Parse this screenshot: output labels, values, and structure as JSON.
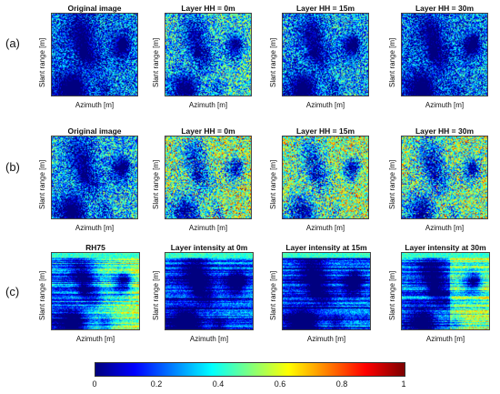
{
  "rows": [
    {
      "label": "(a)",
      "panels": [
        {
          "title": "Original image",
          "xlabel": "Azimuth [m]",
          "ylabel": "Slant range [m]",
          "level": 0.22
        },
        {
          "title": "Layer HH = 0m",
          "xlabel": "Azimuth [m]",
          "ylabel": "Slant range [m]",
          "level": 0.38
        },
        {
          "title": "Layer HH = 15m",
          "xlabel": "Azimuth [m]",
          "ylabel": "Slant range [m]",
          "level": 0.3
        },
        {
          "title": "Layer HH = 30m",
          "xlabel": "Azimuth [m]",
          "ylabel": "Slant range [m]",
          "level": 0.24
        }
      ]
    },
    {
      "label": "(b)",
      "panels": [
        {
          "title": "Original image",
          "xlabel": "Azimuth [m]",
          "ylabel": "Slant range [m]",
          "level": 0.33
        },
        {
          "title": "Layer HH = 0m",
          "xlabel": "Azimuth [m]",
          "ylabel": "Slant range [m]",
          "level": 0.5
        },
        {
          "title": "Layer HH = 15m",
          "xlabel": "Azimuth [m]",
          "ylabel": "Slant range [m]",
          "level": 0.52
        },
        {
          "title": "Layer HH = 30m",
          "xlabel": "Azimuth [m]",
          "ylabel": "Slant range [m]",
          "level": 0.48
        }
      ]
    },
    {
      "label": "(c)",
      "panels": [
        {
          "title": "RH75",
          "xlabel": "Azimuth [m]",
          "ylabel": "Slant range [m]",
          "level": 0.35
        },
        {
          "title": "Layer intensity at 0m",
          "xlabel": "Azimuth [m]",
          "ylabel": "Slant range [m]",
          "level": 0.2
        },
        {
          "title": "Layer intensity at 15m",
          "xlabel": "Azimuth [m]",
          "ylabel": "Slant range [m]",
          "level": 0.18
        },
        {
          "title": "Layer intensity at 30m",
          "xlabel": "Azimuth [m]",
          "ylabel": "Slant range [m]",
          "level": 0.32
        }
      ]
    }
  ],
  "colorbar": {
    "colormap": "jet",
    "range": [
      0,
      1
    ],
    "ticks": [
      "0",
      "0.2",
      "0.4",
      "0.6",
      "0.8",
      "1"
    ]
  }
}
